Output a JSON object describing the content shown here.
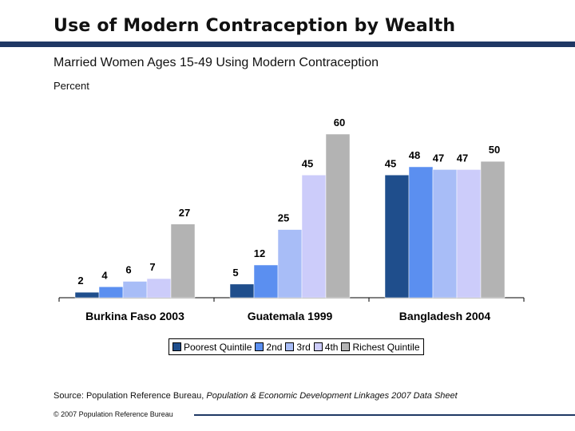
{
  "header": {
    "title": "Use of Modern Contraception by Wealth",
    "subtitle": "Married Women Ages 15-49 Using Modern Contraception",
    "unit": "Percent"
  },
  "colors": {
    "title_bar": "#1f3864",
    "series": [
      "#1f4e8c",
      "#5b8ff0",
      "#a8bdf7",
      "#ccccfa",
      "#b3b3b3"
    ]
  },
  "chart_data": {
    "type": "bar",
    "title": "",
    "xlabel": "",
    "ylabel": "Percent",
    "ylim": [
      0,
      60
    ],
    "grid": false,
    "legend_position": "bottom",
    "categories": [
      "Burkina Faso 2003",
      "Guatemala 1999",
      "Bangladesh 2004"
    ],
    "series": [
      {
        "name": "Poorest Quintile",
        "values": [
          2,
          5,
          45
        ]
      },
      {
        "name": "2nd",
        "values": [
          4,
          12,
          48
        ]
      },
      {
        "name": "3rd",
        "values": [
          6,
          25,
          47
        ]
      },
      {
        "name": "4th",
        "values": [
          7,
          45,
          47
        ]
      },
      {
        "name": "Richest Quintile",
        "values": [
          27,
          60,
          50
        ]
      }
    ]
  },
  "footer": {
    "source_prefix": "Source: Population Reference Bureau, ",
    "source_title": "Population & Economic Development Linkages 2007 Data Sheet",
    "copyright": "© 2007 Population Reference Bureau"
  }
}
